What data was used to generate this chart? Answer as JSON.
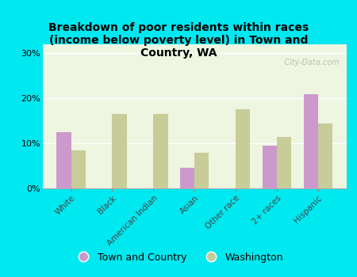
{
  "title": "Breakdown of poor residents within races\n(income below poverty level) in Town and\nCountry, WA",
  "categories": [
    "White",
    "Black",
    "American Indian",
    "Asian",
    "Other race",
    "2+ races",
    "Hispanic"
  ],
  "town_values": [
    12.5,
    0,
    0,
    4.5,
    0,
    9.5,
    21.0
  ],
  "wa_values": [
    8.5,
    16.5,
    16.5,
    8.0,
    17.5,
    11.5,
    14.5
  ],
  "town_color": "#cc99cc",
  "wa_color": "#c8cc99",
  "background_outer": "#00e8f0",
  "background_plot": "#eef5e0",
  "ylim": [
    0,
    32
  ],
  "yticks": [
    0,
    10,
    20,
    30
  ],
  "ytick_labels": [
    "0%",
    "10%",
    "20%",
    "30%"
  ],
  "legend_town": "Town and Country",
  "legend_wa": "Washington",
  "watermark": "  City-Data.com",
  "bar_width": 0.35
}
